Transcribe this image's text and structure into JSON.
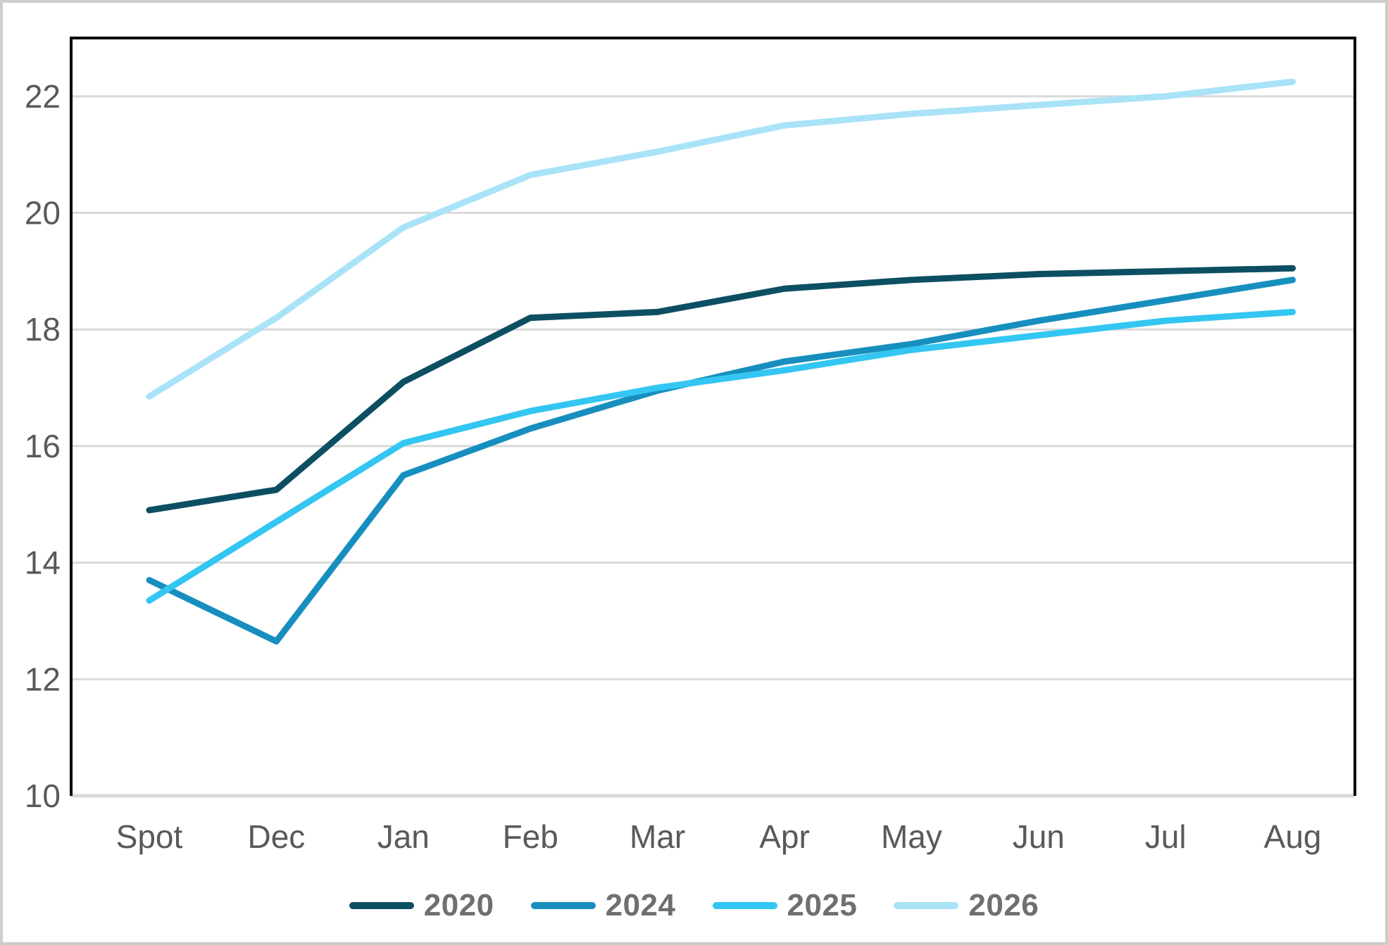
{
  "chart_data": {
    "type": "line",
    "categories": [
      "Spot",
      "Dec",
      "Jan",
      "Feb",
      "Mar",
      "Apr",
      "May",
      "Jun",
      "Jul",
      "Aug"
    ],
    "series": [
      {
        "name": "2020",
        "color": "#0d4f62",
        "values": [
          14.9,
          15.25,
          17.1,
          18.2,
          18.3,
          18.7,
          18.85,
          18.95,
          19.0,
          19.05
        ]
      },
      {
        "name": "2024",
        "color": "#178fbe",
        "values": [
          13.7,
          12.65,
          15.5,
          16.3,
          16.95,
          17.45,
          17.75,
          18.15,
          18.5,
          18.85
        ]
      },
      {
        "name": "2025",
        "color": "#33c6f2",
        "values": [
          13.35,
          14.7,
          16.05,
          16.6,
          17.0,
          17.3,
          17.65,
          17.9,
          18.15,
          18.3
        ]
      },
      {
        "name": "2026",
        "color": "#a9e3f8",
        "values": [
          16.85,
          18.2,
          19.75,
          20.65,
          21.05,
          21.5,
          21.7,
          21.85,
          22.0,
          22.25
        ]
      }
    ],
    "title": "",
    "xlabel": "",
    "ylabel": "",
    "ylim": [
      10,
      23
    ],
    "yticks": [
      10,
      12,
      14,
      16,
      18,
      20,
      22
    ],
    "grid": "horizontal",
    "legend_position": "bottom-center"
  },
  "styles": {
    "background": "#ffffff",
    "frame_border": "#cdcdcd",
    "plot_border": "#000000",
    "gridline": "#d9d9d9",
    "axis_label_text": "#595959",
    "legend_text": "#6f6f6f"
  }
}
